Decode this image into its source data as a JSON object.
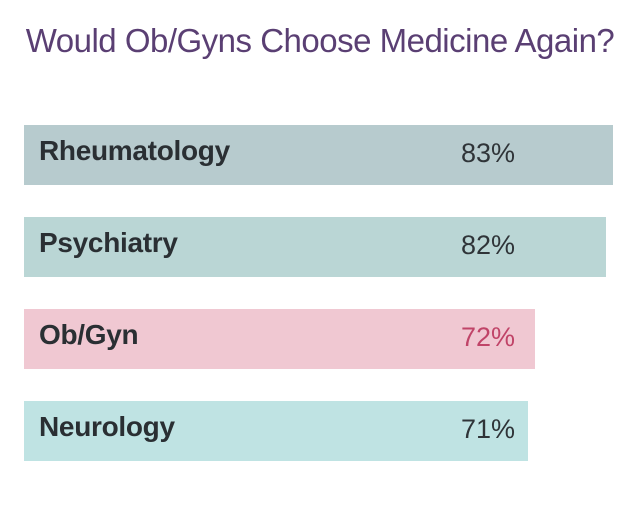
{
  "chart_data": {
    "type": "bar",
    "orientation": "horizontal",
    "title": "Would Ob/Gyns Choose Medicine Again?",
    "xlabel": "",
    "ylabel": "",
    "categories": [
      "Rheumatology",
      "Psychiatry",
      "Ob/Gyn",
      "Neurology"
    ],
    "values": [
      83,
      82,
      72,
      71
    ],
    "value_labels": [
      "83%",
      "82%",
      "72%",
      "71%"
    ],
    "colors": [
      "#b7cbce",
      "#bad6d5",
      "#f0c8d2",
      "#bfe3e3"
    ],
    "value_label_colors": [
      "#2f3438",
      "#2f3438",
      "#c04468",
      "#2f3438"
    ],
    "grid": false,
    "legend": "none"
  }
}
